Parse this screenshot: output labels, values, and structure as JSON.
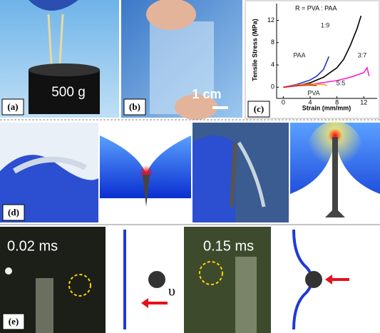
{
  "panels": {
    "a": {
      "label": "(a)",
      "weight": "500 g"
    },
    "b": {
      "label": "(b)",
      "scale_bar": "1 cm"
    },
    "c": {
      "label": "(c)"
    },
    "d": {
      "label": "(d)"
    },
    "e": {
      "label": "(e)",
      "time_1": "0.02 ms",
      "time_2": "0.15 ms",
      "velocity": "υ"
    }
  },
  "chart_data": {
    "type": "line",
    "annotation": "R = PVA : PAA",
    "x_label": "Strain (mm/mm)",
    "y_label": "Tensile Stress (MPa)",
    "xlim": [
      -1,
      14
    ],
    "ylim": [
      -2,
      15
    ],
    "xticks": [
      0,
      4,
      8,
      12
    ],
    "yticks": [
      0,
      4,
      8,
      12
    ],
    "series": [
      {
        "name": "1:9",
        "color": "#000000",
        "x": [
          0,
          2,
          4,
          6,
          8,
          9,
          10,
          11,
          11.6
        ],
        "values": [
          0,
          0.3,
          0.8,
          1.8,
          3.5,
          5,
          7.5,
          10.5,
          12.8
        ]
      },
      {
        "name": "PAA",
        "color": "#2233cc",
        "x": [
          0,
          2,
          4,
          5,
          6,
          6.8
        ],
        "values": [
          0,
          0.5,
          1.3,
          2,
          3.2,
          5.5
        ]
      },
      {
        "name": "3:7",
        "color": "#ff22cc",
        "x": [
          0,
          4,
          8,
          10,
          12,
          12.5,
          12.8
        ],
        "values": [
          0,
          0.5,
          1.2,
          1.8,
          2.6,
          3.5,
          2
        ]
      },
      {
        "name": "5:5",
        "color": "#ff9900",
        "x": [
          0,
          2,
          4,
          6,
          6.5
        ],
        "values": [
          0,
          0.4,
          0.6,
          0.5,
          0.3
        ]
      },
      {
        "name": "PVA",
        "color": "#dd2222",
        "x": [
          0,
          2,
          4,
          5
        ],
        "values": [
          0,
          0.3,
          0.4,
          0.3
        ]
      }
    ]
  }
}
